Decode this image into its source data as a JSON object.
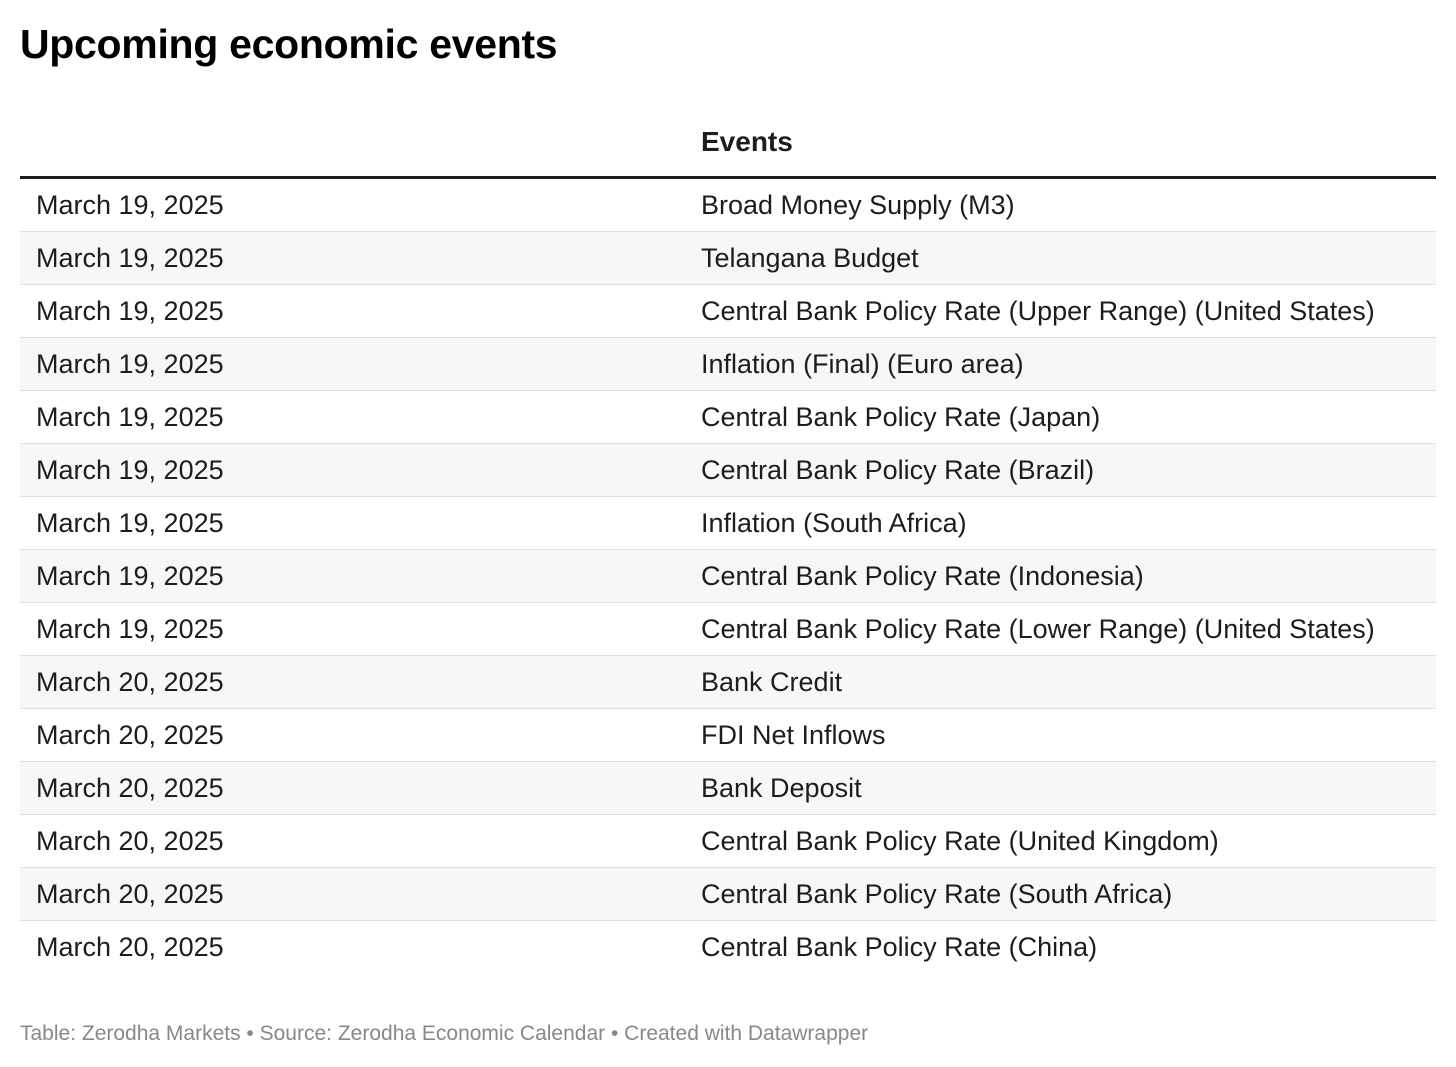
{
  "chart_data": {
    "type": "table",
    "title": "Upcoming economic events",
    "columns": [
      "",
      "Events"
    ],
    "rows": [
      {
        "date": "March 19, 2025",
        "event": "Broad Money Supply (M3)"
      },
      {
        "date": "March 19, 2025",
        "event": "Telangana Budget"
      },
      {
        "date": "March 19, 2025",
        "event": "Central Bank Policy Rate (Upper Range) (United States)"
      },
      {
        "date": "March 19, 2025",
        "event": "Inflation (Final) (Euro area)"
      },
      {
        "date": "March 19, 2025",
        "event": "Central Bank Policy Rate (Japan)"
      },
      {
        "date": "March 19, 2025",
        "event": "Central Bank Policy Rate (Brazil)"
      },
      {
        "date": "March 19, 2025",
        "event": "Inflation (South Africa)"
      },
      {
        "date": "March 19, 2025",
        "event": "Central Bank Policy Rate (Indonesia)"
      },
      {
        "date": "March 19, 2025",
        "event": "Central Bank Policy Rate (Lower Range) (United States)"
      },
      {
        "date": "March 20, 2025",
        "event": "Bank Credit"
      },
      {
        "date": "March 20, 2025",
        "event": "FDI Net Inflows"
      },
      {
        "date": "March 20, 2025",
        "event": "Bank Deposit"
      },
      {
        "date": "March 20, 2025",
        "event": "Central Bank Policy Rate (United Kingdom)"
      },
      {
        "date": "March 20, 2025",
        "event": "Central Bank Policy Rate (South Africa)"
      },
      {
        "date": "March 20, 2025",
        "event": "Central Bank Policy Rate (China)"
      }
    ],
    "footer": "Table: Zerodha Markets • Source: Zerodha Economic Calendar • Created with Datawrapper",
    "colors": {
      "text": "#1d1d1d",
      "stripe": "#f7f7f7",
      "divider": "#e0e0e0",
      "footer": "#888888"
    }
  }
}
